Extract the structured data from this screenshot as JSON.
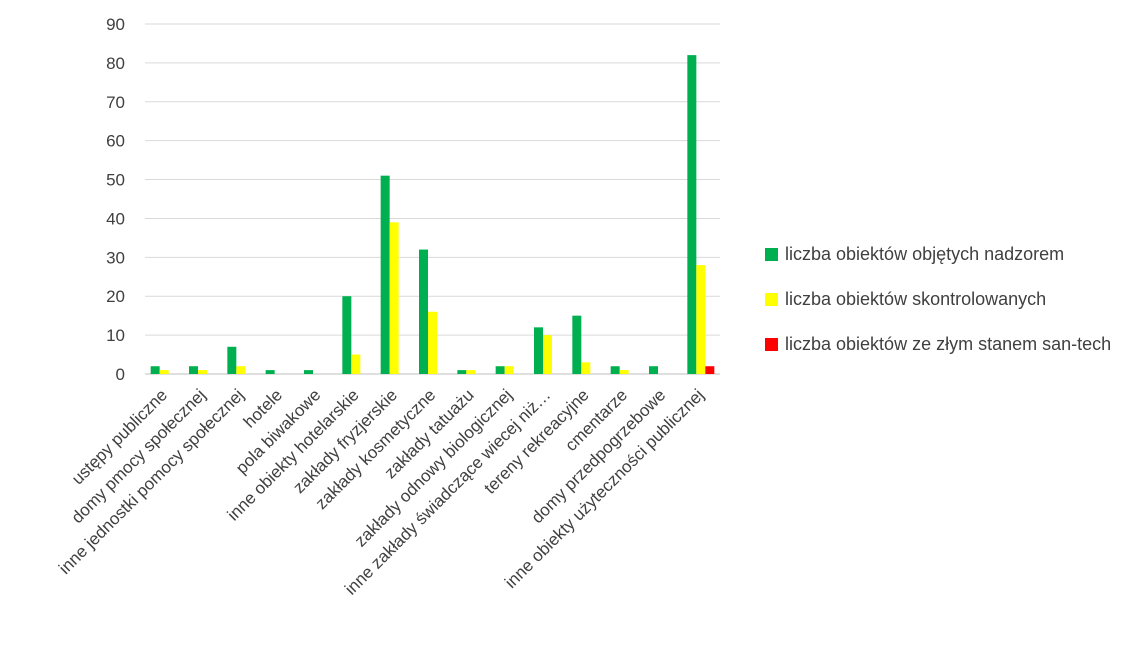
{
  "chart_data": {
    "type": "bar",
    "categories": [
      "ustępy publiczne",
      "domy pmocy społecznej",
      "inne jednostki pomocy społecznej",
      "hotele",
      "pola biwakowe",
      "inne obiekty hotelarskie",
      "zakłady fryzjerskie",
      "zakłady kosmetyczne",
      "zakłady tatuażu",
      "zakłady odnowy biologicznej",
      "inne zakłady świadczące wiecej niż…",
      "tereny rekreacyjne",
      "cmentarze",
      "domy przedpogrzebowe",
      "inne obiekty użyteczności publicznej"
    ],
    "series": [
      {
        "name": "liczba obiektów objętych nadzorem",
        "color": "#00b050",
        "values": [
          2,
          2,
          7,
          1,
          1,
          20,
          51,
          32,
          1,
          2,
          12,
          15,
          2,
          2,
          82
        ]
      },
      {
        "name": "liczba obiektów skontrolowanych",
        "color": "#ffff00",
        "values": [
          1,
          1,
          2,
          0,
          0,
          5,
          39,
          16,
          1,
          2,
          10,
          3,
          1,
          0,
          28
        ]
      },
      {
        "name": "liczba obiektów ze złym stanem san-tech",
        "color": "#ff0000",
        "values": [
          0,
          0,
          0,
          0,
          0,
          0,
          0,
          0,
          0,
          0,
          0,
          0,
          0,
          0,
          2
        ]
      }
    ],
    "yticks": [
      0,
      10,
      20,
      30,
      40,
      50,
      60,
      70,
      80,
      90
    ],
    "ylim": [
      0,
      90
    ],
    "grid": true,
    "legend_position": "right",
    "xlabel": "",
    "ylabel": "",
    "title": ""
  }
}
